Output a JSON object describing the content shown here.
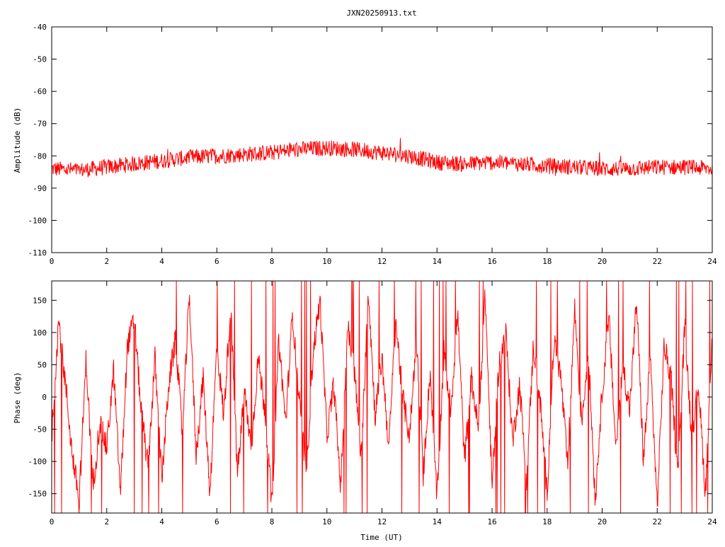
{
  "title": "JXN20250913.txt",
  "chart_data": [
    {
      "type": "line",
      "ylabel": "Amplitude (dB)",
      "xlabel": "",
      "xlim": [
        0,
        24
      ],
      "ylim": [
        -110,
        -40
      ],
      "x_ticks": [
        "0",
        "2",
        "4",
        "6",
        "8",
        "10",
        "12",
        "14",
        "16",
        "18",
        "20",
        "22",
        "24"
      ],
      "y_ticks": [
        "-40",
        "-50",
        "-60",
        "-70",
        "-80",
        "-90",
        "-100",
        "-110"
      ],
      "grid": false,
      "series": [
        {
          "color": "#ff0000",
          "x": [
            0,
            1,
            2,
            3,
            4,
            5,
            6,
            7,
            8,
            9,
            10,
            11,
            12,
            13,
            14,
            15,
            16,
            17,
            18,
            19,
            20,
            21,
            22,
            23,
            24
          ],
          "y": [
            -84,
            -84.5,
            -83.5,
            -82.5,
            -81.5,
            -80.5,
            -80,
            -79.5,
            -79,
            -78,
            -77.5,
            -78,
            -79,
            -80,
            -82,
            -82.5,
            -82,
            -82.5,
            -83,
            -83.5,
            -84,
            -84,
            -83.5,
            -83.5,
            -84
          ],
          "noise": 2.5
        }
      ]
    },
    {
      "type": "line",
      "ylabel": "Phase (deg)",
      "xlabel": "Time (UT)",
      "xlim": [
        0,
        24
      ],
      "ylim": [
        -180,
        180
      ],
      "x_ticks": [
        "0",
        "2",
        "4",
        "6",
        "8",
        "10",
        "12",
        "14",
        "16",
        "18",
        "20",
        "22",
        "24"
      ],
      "y_ticks": [
        "150",
        "100",
        "50",
        "0",
        "-50",
        "-100",
        "-150"
      ],
      "grid": false,
      "series": [
        {
          "color": "#ff0000",
          "x": [
            0,
            0.25,
            0.5,
            0.75,
            1,
            1.25,
            1.5,
            1.75,
            2,
            2.25,
            2.5,
            2.75,
            3,
            3.25,
            3.5,
            3.75,
            4,
            4.25,
            4.5,
            4.75,
            5,
            5.25,
            5.5,
            5.75,
            6,
            6.25,
            6.5,
            6.75,
            7,
            7.25,
            7.5,
            7.75,
            8,
            8.25,
            8.5,
            8.75,
            9,
            9.25,
            9.5,
            9.75,
            10,
            10.25,
            10.5,
            10.75,
            11,
            11.25,
            11.5,
            11.75,
            12,
            12.25,
            12.5,
            12.75,
            13,
            13.25,
            13.5,
            13.75,
            14,
            14.25,
            14.5,
            14.75,
            15,
            15.25,
            15.5,
            15.75,
            16,
            16.25,
            16.5,
            16.75,
            17,
            17.25,
            17.5,
            17.75,
            18,
            18.25,
            18.5,
            18.75,
            19,
            19.25,
            19.5,
            19.75,
            20,
            20.25,
            20.5,
            20.75,
            21,
            21.25,
            21.5,
            21.75,
            22,
            22.25,
            22.5,
            22.75,
            23,
            23.25,
            23.5,
            23.75,
            24
          ],
          "y": [
            -60,
            120,
            20,
            -90,
            -160,
            60,
            -140,
            -40,
            -80,
            40,
            -150,
            80,
            120,
            -20,
            -110,
            60,
            -130,
            20,
            90,
            -60,
            160,
            -90,
            30,
            -150,
            80,
            -30,
            140,
            -120,
            10,
            -80,
            60,
            -20,
            -170,
            90,
            -40,
            130,
            -10,
            -120,
            70,
            150,
            -60,
            20,
            -140,
            110,
            40,
            -100,
            170,
            -30,
            60,
            -80,
            120,
            0,
            -60,
            90,
            -120,
            40,
            -160,
            70,
            -20,
            130,
            -100,
            30,
            -50,
            160,
            -140,
            50,
            100,
            -70,
            20,
            -130,
            80,
            -10,
            -150,
            90,
            30,
            -110,
            140,
            -40,
            70,
            -160,
            10,
            120,
            -80,
            50,
            -20,
            150,
            -100,
            60,
            -170,
            80,
            30,
            -120,
            110,
            -60,
            20,
            -150,
            90
          ]
        }
      ]
    }
  ]
}
